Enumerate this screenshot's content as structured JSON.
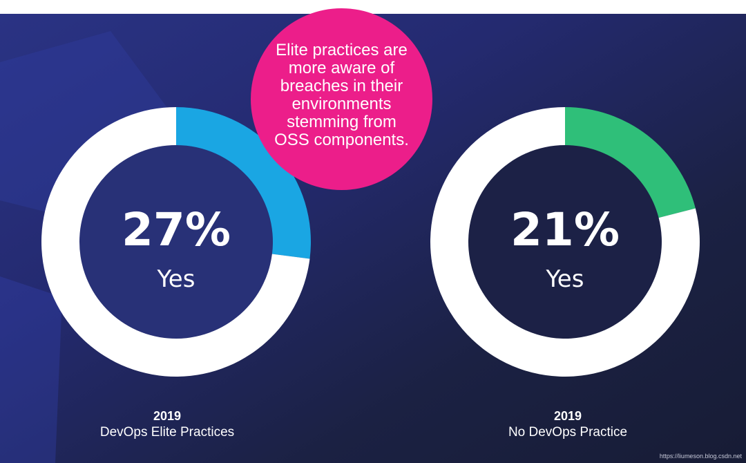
{
  "colors": {
    "background_dark": "#1b2143",
    "background_accent": "#2a3384",
    "callout": "#ec1e8a",
    "ring_base": "#ffffff",
    "elite_segment": "#1aa6e3",
    "no_devops_segment": "#2fbf79"
  },
  "callout": {
    "text": "Elite practices are more aware of breaches in their environments stemming from OSS components."
  },
  "chart_data": [
    {
      "type": "pie",
      "title": "",
      "center_value": "27%",
      "center_label": "Yes",
      "caption_year": "2019",
      "caption_name": "DevOps Elite Practices",
      "values": [
        27,
        73
      ],
      "colors": [
        "#1aa6e3",
        "#ffffff"
      ]
    },
    {
      "type": "pie",
      "title": "",
      "center_value": "21%",
      "center_label": "Yes",
      "caption_year": "2019",
      "caption_name": "No DevOps Practice",
      "values": [
        21,
        79
      ],
      "colors": [
        "#2fbf79",
        "#ffffff"
      ]
    }
  ],
  "watermark": {
    "text": "https://liumeson.blog.csdn.net"
  }
}
